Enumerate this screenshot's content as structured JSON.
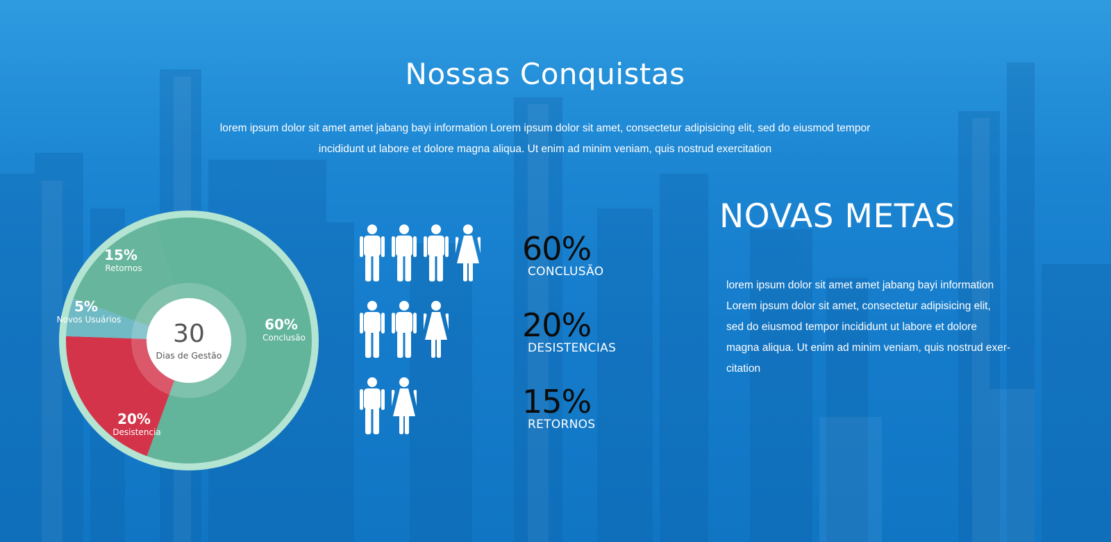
{
  "header": {
    "title": "Nossas Conquistas",
    "intro_line1": "lorem ipsum dolor sit amet amet jabang bayi  information Lorem ipsum dolor sit amet, consectetur adipisicing elit, sed do eiusmod tempor",
    "intro_line2": "incididunt ut labore et dolore magna aliqua. Ut enim ad minim veniam, quis nostrud exercitation"
  },
  "goals": {
    "title": "NOVAS METAS",
    "lines": [
      "lorem ipsum dolor sit amet amet jabang bayi  information",
      "Lorem ipsum dolor sit amet, consectetur adipisicing elit,",
      "sed do eiusmod tempor incididunt ut labore et dolore",
      "magna aliqua. Ut enim ad minim veniam, quis nostrud exer-",
      "citation"
    ]
  },
  "chart_data": [
    {
      "type": "pie",
      "center_value": "30",
      "center_label": "Dias de Gestão",
      "slices": [
        {
          "label": "Conclusão",
          "display": "60%",
          "value": 60,
          "color": "#62b49a"
        },
        {
          "label": "Desistencia",
          "display": "20%",
          "value": 20,
          "color": "#d3344a"
        },
        {
          "label": "Novos Usuários",
          "display": "5%",
          "value": 5,
          "color": "#6fbac4"
        },
        {
          "label": "Retornos",
          "display": "15%",
          "value": 15,
          "color": "#67b59c"
        }
      ],
      "ring_color": "#b4e4d2"
    },
    {
      "type": "bar",
      "categories": [
        "CONCLUSÃO",
        "DESISTENCIAS",
        "RETORNOS"
      ],
      "values": [
        60,
        20,
        15
      ],
      "value_labels": [
        "60%",
        "20%",
        "15%"
      ],
      "icons": [
        [
          "male",
          "male",
          "male",
          "female"
        ],
        [
          "male",
          "male",
          "female"
        ],
        [
          "male",
          "female"
        ]
      ]
    }
  ]
}
